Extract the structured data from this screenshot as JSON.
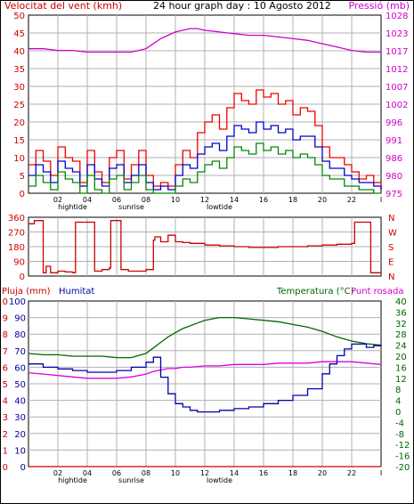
{
  "colors": {
    "wind_avg": "#0000cc",
    "wind_gust": "#ee0000",
    "wind_low": "#008800",
    "pressure": "#cc00cc",
    "direction": "#cc0000",
    "temperature": "#006600",
    "dewpoint": "#dd00dd",
    "humidity": "#0000aa",
    "rain": "#cc0000",
    "grid": "#b0b0b0",
    "axis_red": "#cc0000",
    "axis_green": "#006600",
    "axis_purple": "#cc00cc",
    "axis_blue": "#000099"
  },
  "x_axis": {
    "ticks": [
      {
        "h": 2,
        "label": "02"
      },
      {
        "h": 4,
        "label": "04"
      },
      {
        "h": 6,
        "label": "06"
      },
      {
        "h": 8,
        "label": "08"
      },
      {
        "h": 10,
        "label": "10"
      },
      {
        "h": 12,
        "label": "12"
      },
      {
        "h": 14,
        "label": "14"
      },
      {
        "h": 16,
        "label": "16"
      },
      {
        "h": 18,
        "label": "18"
      },
      {
        "h": 20,
        "label": "20"
      },
      {
        "h": 22,
        "label": "22"
      }
    ],
    "end_label": "I",
    "events": [
      {
        "h": 3,
        "label": "hightide"
      },
      {
        "h": 7,
        "label": "sunrise"
      },
      {
        "h": 13,
        "label": "lowtide"
      }
    ]
  },
  "chart_data": [
    {
      "type": "line",
      "title": "24 hour graph day : 10 Agosto 2012",
      "left_label": "Velocitat del vent (kmh)",
      "right_label": "Pressió (mb)",
      "ylim": [
        0,
        50
      ],
      "y_ticks": [
        "0",
        "5",
        "10",
        "15",
        "20",
        "25",
        "30",
        "35",
        "40",
        "45",
        "50"
      ],
      "ylim_right": [
        975,
        1028
      ],
      "y_ticks_right": [
        "975",
        "980",
        "986",
        "991",
        "996",
        "1002",
        "1007",
        "1012",
        "1017",
        "1023",
        "1028"
      ],
      "series": [
        {
          "key": "pressure",
          "axis": "right",
          "x": [
            0,
            1,
            2,
            3,
            4,
            5,
            6,
            7,
            7.5,
            8,
            8.5,
            9,
            9.5,
            10,
            10.5,
            11,
            11.5,
            12,
            13,
            14,
            15,
            16,
            17,
            18,
            19,
            20,
            21,
            22,
            23,
            24
          ],
          "values": [
            1018,
            1018,
            1017.5,
            1017.5,
            1017,
            1017,
            1017,
            1017,
            1017.5,
            1018,
            1019.5,
            1021,
            1022,
            1023,
            1023.5,
            1024,
            1024,
            1023.5,
            1023,
            1022.5,
            1022,
            1022,
            1021.5,
            1021,
            1020.5,
            1019.5,
            1018.5,
            1017.5,
            1017,
            1017
          ]
        },
        {
          "key": "wind_gust",
          "axis": "left",
          "x": [
            0,
            0.5,
            1,
            1.5,
            2,
            2.5,
            3,
            3.5,
            4,
            4.5,
            5,
            5.5,
            6,
            6.5,
            7,
            7.5,
            8,
            8.5,
            9,
            9.5,
            10,
            10.5,
            11,
            11.5,
            12,
            12.5,
            13,
            13.5,
            14,
            14.5,
            15,
            15.5,
            16,
            16.5,
            17,
            17.5,
            18,
            18.5,
            19,
            19.5,
            20,
            20.5,
            21,
            21.5,
            22,
            22.5,
            23,
            23.5,
            24
          ],
          "values": [
            8,
            12,
            9,
            5,
            13,
            10,
            9,
            3,
            12,
            6,
            3,
            10,
            12,
            4,
            8,
            12,
            5,
            2,
            3,
            2,
            8,
            12,
            10,
            17,
            20,
            22,
            18,
            24,
            28,
            26,
            25,
            29,
            27,
            28,
            25,
            26,
            22,
            24,
            23,
            19,
            13,
            10,
            10,
            8,
            6,
            4,
            5,
            3,
            1
          ]
        },
        {
          "key": "wind_avg",
          "axis": "left",
          "x": [
            0,
            0.5,
            1,
            1.5,
            2,
            2.5,
            3,
            3.5,
            4,
            4.5,
            5,
            5.5,
            6,
            6.5,
            7,
            7.5,
            8,
            8.5,
            9,
            9.5,
            10,
            10.5,
            11,
            11.5,
            12,
            12.5,
            13,
            13.5,
            14,
            14.5,
            15,
            15.5,
            16,
            16.5,
            17,
            17.5,
            18,
            18.5,
            19,
            19.5,
            20,
            20.5,
            21,
            21.5,
            22,
            22.5,
            23,
            23.5,
            24
          ],
          "values": [
            5,
            8,
            6,
            3,
            9,
            7,
            6,
            2,
            8,
            4,
            2,
            7,
            8,
            3,
            5,
            8,
            3,
            1,
            2,
            1,
            5,
            8,
            7,
            11,
            13,
            14,
            12,
            16,
            19,
            18,
            17,
            20,
            18,
            19,
            17,
            18,
            15,
            16,
            16,
            13,
            9,
            7,
            7,
            5,
            4,
            3,
            3,
            2,
            1
          ]
        },
        {
          "key": "wind_low",
          "axis": "left",
          "x": [
            0,
            0.5,
            1,
            1.5,
            2,
            2.5,
            3,
            3.5,
            4,
            4.5,
            5,
            5.5,
            6,
            6.5,
            7,
            7.5,
            8,
            8.5,
            9,
            9.5,
            10,
            10.5,
            11,
            11.5,
            12,
            12.5,
            13,
            13.5,
            14,
            14.5,
            15,
            15.5,
            16,
            16.5,
            17,
            17.5,
            18,
            18.5,
            19,
            19.5,
            20,
            20.5,
            21,
            21.5,
            22,
            22.5,
            23,
            23.5,
            24
          ],
          "values": [
            2,
            5,
            3,
            1,
            6,
            4,
            3,
            0,
            5,
            1,
            0,
            4,
            5,
            1,
            3,
            5,
            1,
            0,
            0,
            0,
            2,
            4,
            3,
            6,
            8,
            9,
            7,
            10,
            13,
            12,
            11,
            14,
            12,
            13,
            11,
            12,
            10,
            11,
            10,
            8,
            5,
            4,
            4,
            2,
            2,
            1,
            1,
            0,
            0
          ]
        }
      ]
    },
    {
      "type": "line",
      "title": "",
      "left_label": "",
      "ylim": [
        0,
        360
      ],
      "y_ticks": [
        "0",
        "90",
        "180",
        "270",
        "360"
      ],
      "y_ticks_right": [
        "N",
        "E",
        "S",
        "W",
        "N"
      ],
      "series": [
        {
          "key": "direction",
          "axis": "left",
          "x": [
            0,
            0.4,
            0.5,
            1,
            1.2,
            1.5,
            2,
            2.5,
            3,
            3.2,
            3.4,
            4,
            4.1,
            4.5,
            5,
            5.5,
            5.6,
            6,
            6.3,
            6.8,
            7,
            7.5,
            8,
            8.5,
            8.6,
            9,
            9.5,
            10,
            10.5,
            11,
            12,
            13,
            14,
            15,
            16,
            17,
            18,
            19,
            20,
            21,
            22,
            22.2,
            22.8,
            23,
            23.3,
            24
          ],
          "values": [
            320,
            340,
            340,
            20,
            60,
            20,
            30,
            25,
            20,
            330,
            330,
            330,
            330,
            30,
            40,
            50,
            340,
            340,
            40,
            30,
            30,
            30,
            40,
            220,
            240,
            210,
            250,
            210,
            205,
            200,
            190,
            185,
            180,
            175,
            175,
            180,
            180,
            185,
            190,
            195,
            200,
            330,
            330,
            330,
            20,
            20
          ]
        }
      ]
    },
    {
      "type": "line",
      "title": "",
      "left_label": "Pluja (mm)",
      "left2_label": "Humitat",
      "right_label": "Temperatura (°C)",
      "right2_label": "Punt rosada",
      "ylim": [
        -20,
        40
      ],
      "y_ticks": [
        "0",
        "1",
        "2",
        "3",
        "4",
        "5",
        "6",
        "7",
        "8",
        "9",
        "10"
      ],
      "y_ticks2": [
        "0",
        "10",
        "20",
        "30",
        "40",
        "50",
        "60",
        "70",
        "80",
        "90",
        "100"
      ],
      "y_ticks_right": [
        "-20",
        "-16",
        "-12",
        "-8",
        "-4",
        "0",
        "4",
        "8",
        "12",
        "16",
        "20",
        "24",
        "28",
        "32",
        "36",
        "40"
      ],
      "series": [
        {
          "key": "temperature",
          "axis": "right",
          "x": [
            0,
            1,
            2,
            3,
            4,
            5,
            6,
            7,
            8,
            8.5,
            9,
            9.5,
            10,
            10.5,
            11,
            11.5,
            12,
            13,
            14,
            15,
            16,
            17,
            18,
            19,
            20,
            21,
            22,
            23,
            24
          ],
          "values": [
            21,
            20.5,
            20.5,
            20,
            20,
            20,
            19.5,
            19.5,
            21,
            23,
            25,
            27,
            28.5,
            30,
            31,
            32,
            33,
            34,
            34,
            33.5,
            33,
            32.5,
            31.5,
            30.5,
            29,
            27,
            25.5,
            24.5,
            24
          ]
        },
        {
          "key": "dewpoint",
          "axis": "right",
          "x": [
            0,
            1,
            2,
            3,
            4,
            5,
            6,
            7,
            8,
            8.5,
            9,
            9.5,
            10,
            10.5,
            11,
            12,
            13,
            14,
            15,
            16,
            17,
            18,
            19,
            20,
            21,
            22,
            23,
            24
          ],
          "values": [
            14,
            13.5,
            13,
            12.5,
            12,
            12,
            12,
            12.5,
            13.5,
            14.5,
            15,
            15.5,
            15.5,
            16,
            16,
            16.5,
            16.5,
            17,
            17,
            17,
            17.5,
            17.5,
            17.5,
            18,
            18,
            18,
            17.5,
            17
          ]
        },
        {
          "key": "humidity",
          "axis": "left2",
          "x": [
            0,
            1,
            2,
            3,
            4,
            5,
            6,
            7,
            8,
            8.5,
            9,
            9.5,
            10,
            10.5,
            11,
            11.5,
            12,
            12.5,
            13,
            14,
            15,
            16,
            17,
            18,
            19,
            20,
            20.5,
            21,
            21.5,
            22,
            22.5,
            23,
            23.5,
            24
          ],
          "values": [
            62,
            60,
            59,
            58,
            57,
            57,
            58,
            60,
            63,
            66,
            54,
            44,
            38,
            36,
            34,
            33,
            33,
            33,
            34,
            35,
            36,
            38,
            40,
            43,
            47,
            56,
            62,
            67,
            71,
            74,
            74,
            72,
            73,
            74
          ]
        },
        {
          "key": "rain",
          "axis": "left",
          "x": [
            0,
            24
          ],
          "values": [
            0,
            0
          ]
        }
      ]
    }
  ]
}
